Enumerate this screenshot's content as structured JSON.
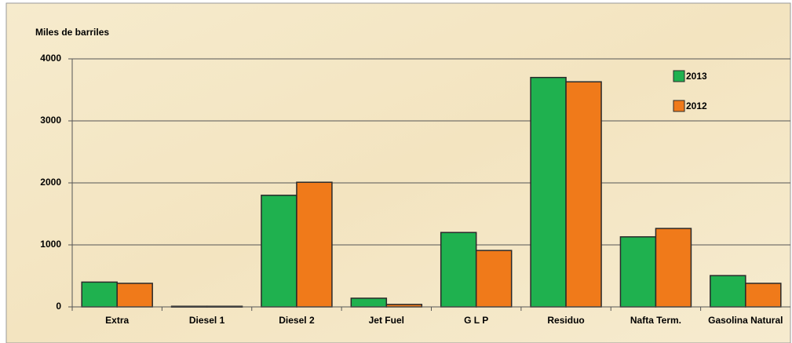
{
  "chart_data": {
    "type": "bar",
    "y_axis_label": "Miles de barriles",
    "categories": [
      "Extra",
      "Diesel 1",
      "Diesel 2",
      "Jet Fuel",
      "G L P",
      "Residuo",
      "Nafta Term.",
      "Gasolina Natural"
    ],
    "series": [
      {
        "name": "2013",
        "color": "#1fb14f",
        "values": [
          400,
          10,
          1800,
          140,
          1200,
          3700,
          1130,
          505
        ]
      },
      {
        "name": "2012",
        "color": "#f07a1a",
        "values": [
          380,
          10,
          2010,
          40,
          910,
          3630,
          1265,
          380
        ]
      }
    ],
    "ylim": [
      0,
      4000
    ],
    "yticks": [
      0,
      1000,
      2000,
      3000,
      4000
    ],
    "grid": true,
    "legend": "upper right"
  }
}
